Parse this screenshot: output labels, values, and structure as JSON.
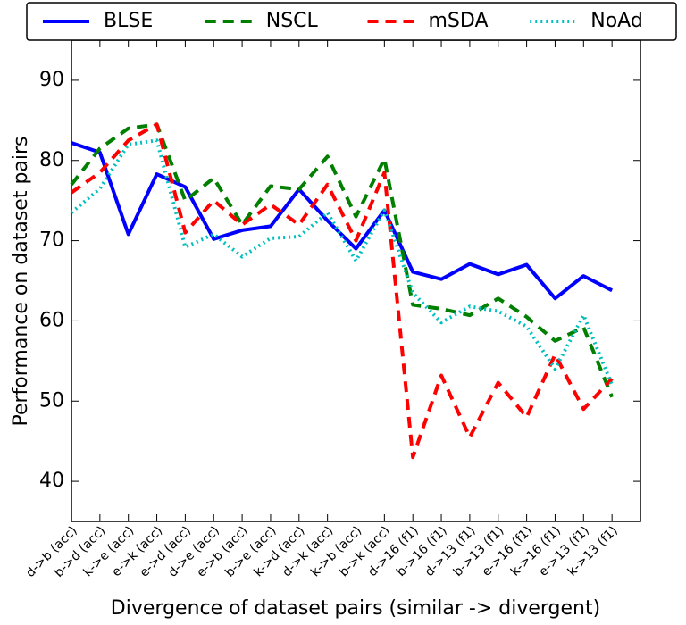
{
  "chart_data": {
    "type": "line",
    "xlabel": "Divergence of dataset pairs (similar -> divergent)",
    "ylabel": "Performance on dataset pairs",
    "categories": [
      "d->b (acc)",
      "b->d (acc)",
      "k->e (acc)",
      "e->k (acc)",
      "e->d (acc)",
      "d->e (acc)",
      "e->b (acc)",
      "b->e (acc)",
      "k->d (acc)",
      "d->k (acc)",
      "k->b (acc)",
      "b->k (acc)",
      "d->16 (f1)",
      "b->16 (f1)",
      "d->13 (f1)",
      "b->13 (f1)",
      "e->16 (f1)",
      "k->16 (f1)",
      "e->13 (f1)",
      "k->13 (f1)"
    ],
    "series": [
      {
        "name": "BLSE",
        "color": "#0000ff",
        "style": "solid",
        "values": [
          82.2,
          81,
          70.8,
          78.3,
          76.7,
          70.2,
          71.3,
          71.8,
          76.4,
          72.5,
          69,
          73.8,
          66.1,
          65.2,
          67.1,
          65.8,
          67,
          62.8,
          65.6,
          63.8
        ]
      },
      {
        "name": "NSCL",
        "color": "#007f00",
        "style": "dashed",
        "values": [
          77,
          81.5,
          84,
          84.5,
          75,
          77.8,
          72,
          76.8,
          76.4,
          80.5,
          73,
          80.2,
          62,
          61.5,
          60.7,
          62.8,
          60.5,
          57.5,
          59.2,
          50.5
        ]
      },
      {
        "name": "mSDA",
        "color": "#ff0000",
        "style": "dashed",
        "values": [
          76,
          78.5,
          82.5,
          84.5,
          71,
          75,
          72,
          74.5,
          72,
          77,
          70,
          78.5,
          43,
          53.2,
          45.5,
          52.3,
          48,
          55.8,
          49,
          52.8
        ]
      },
      {
        "name": "NoAd",
        "color": "#00bfbf",
        "style": "dotted",
        "values": [
          73.5,
          76.5,
          82,
          82.5,
          69.2,
          70.8,
          68,
          70.3,
          70.5,
          73.5,
          67.5,
          73.8,
          63.5,
          59.8,
          61.8,
          61.2,
          59.3,
          54,
          60.7,
          52
        ]
      }
    ],
    "ylim": [
      35,
      95
    ],
    "yticks": [
      40,
      50,
      60,
      70,
      80,
      90
    ],
    "legend": "top",
    "grid": false
  }
}
